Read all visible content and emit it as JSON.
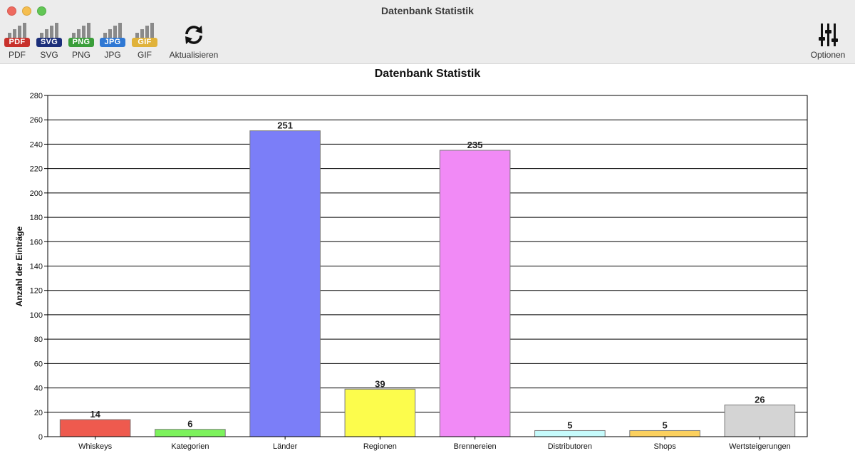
{
  "window": {
    "title": "Datenbank Statistik"
  },
  "toolbar": {
    "exports": [
      {
        "badge": "PDF",
        "label": "PDF",
        "color": "#c8312b"
      },
      {
        "badge": "SVG",
        "label": "SVG",
        "color": "#1c2f7a"
      },
      {
        "badge": "PNG",
        "label": "PNG",
        "color": "#3a9e3a"
      },
      {
        "badge": "JPG",
        "label": "JPG",
        "color": "#2f78d4"
      },
      {
        "badge": "GIF",
        "label": "GIF",
        "color": "#e0b23a"
      }
    ],
    "refresh_label": "Aktualisieren",
    "options_label": "Optionen"
  },
  "chart_data": {
    "type": "bar",
    "title": "Datenbank Statistik",
    "xlabel": "",
    "ylabel": "Anzahl der Einträge",
    "ylim": [
      0,
      280
    ],
    "yticks": [
      0,
      20,
      40,
      60,
      80,
      100,
      120,
      140,
      160,
      180,
      200,
      220,
      240,
      260,
      280
    ],
    "grid": true,
    "categories": [
      "Whiskeys",
      "Kategorien",
      "Länder",
      "Regionen",
      "Brennereien",
      "Distributoren",
      "Shops",
      "Wertsteigerungen"
    ],
    "values": [
      14,
      6,
      251,
      39,
      235,
      5,
      5,
      26
    ],
    "colors": [
      "#ee5a4e",
      "#7cf25c",
      "#7b7ef8",
      "#fcfc4c",
      "#f18af6",
      "#c6fbfc",
      "#fbd05e",
      "#d4d4d4"
    ]
  }
}
